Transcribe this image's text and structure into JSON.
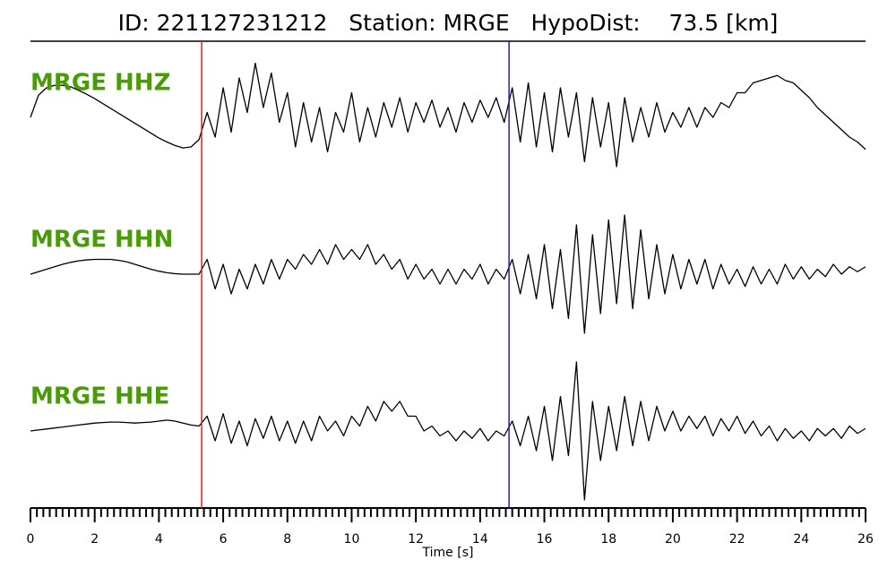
{
  "chart_data": {
    "type": "line",
    "title": "ID: 221127231212   Station: MRGE   HypoDist:    73.5 [km]",
    "x_label": "Time [s]",
    "xlim": [
      0,
      26
    ],
    "xticks": [
      0,
      2,
      4,
      6,
      8,
      10,
      12,
      14,
      16,
      18,
      20,
      22,
      24,
      26
    ],
    "xminorticks": [
      0.2,
      0.4,
      0.6,
      0.8,
      1,
      1.2,
      1.4,
      1.6,
      1.8,
      2.2,
      2.4,
      2.6,
      2.8,
      3,
      3.2,
      3.4,
      3.6,
      3.8,
      4.2,
      4.4,
      4.6,
      4.8,
      5,
      5.2,
      5.4,
      5.6,
      5.8,
      6.2,
      6.4,
      6.6,
      6.8,
      7,
      7.2,
      7.4,
      7.6,
      7.8,
      8.2,
      8.4,
      8.6,
      8.8,
      9,
      9.2,
      9.4,
      9.6,
      9.8,
      10.2,
      10.4,
      10.6,
      10.8,
      11,
      11.2,
      11.4,
      11.6,
      11.8,
      12.2,
      12.4,
      12.6,
      12.8,
      13,
      13.2,
      13.4,
      13.6,
      13.8,
      14.2,
      14.4,
      14.6,
      14.8,
      15,
      15.2,
      15.4,
      15.6,
      15.8,
      16.2,
      16.4,
      16.6,
      16.8,
      17,
      17.2,
      17.4,
      17.6,
      17.8,
      18.2,
      18.4,
      18.6,
      18.8,
      19,
      19.2,
      19.4,
      19.6,
      19.8,
      20.2,
      20.4,
      20.6,
      20.8,
      21,
      21.2,
      21.4,
      21.6,
      21.8,
      22.2,
      22.4,
      22.6,
      22.8,
      23,
      23.2,
      23.4,
      23.6,
      23.8,
      24.2,
      24.4,
      24.6,
      24.8,
      25,
      25.2,
      25.4,
      25.6,
      25.8
    ],
    "picks": [
      {
        "value": 5.33,
        "color": "#e02020"
      },
      {
        "value": 14.9,
        "color": "#2020b0"
      }
    ],
    "label_color": "#4a9a0a",
    "x": [
      0,
      0.25,
      0.5,
      0.75,
      1,
      1.25,
      1.5,
      1.75,
      2,
      2.25,
      2.5,
      2.75,
      3,
      3.25,
      3.5,
      3.75,
      4,
      4.25,
      4.5,
      4.75,
      5,
      5.25,
      5.5,
      5.75,
      6,
      6.25,
      6.5,
      6.75,
      7,
      7.25,
      7.5,
      7.75,
      8,
      8.25,
      8.5,
      8.75,
      9,
      9.25,
      9.5,
      9.75,
      10,
      10.25,
      10.5,
      10.75,
      11,
      11.25,
      11.5,
      11.75,
      12,
      12.25,
      12.5,
      12.75,
      13,
      13.25,
      13.5,
      13.75,
      14,
      14.25,
      14.5,
      14.75,
      15,
      15.25,
      15.5,
      15.75,
      16,
      16.25,
      16.5,
      16.75,
      17,
      17.25,
      17.5,
      17.75,
      18,
      18.25,
      18.5,
      18.75,
      19,
      19.25,
      19.5,
      19.75,
      20,
      20.25,
      20.5,
      20.75,
      21,
      21.25,
      21.5,
      21.75,
      22,
      22.25,
      22.5,
      22.75,
      23,
      23.25,
      23.5,
      23.75,
      24,
      24.25,
      24.5,
      24.75,
      25,
      25.25,
      25.5,
      25.75,
      26
    ],
    "series": [
      {
        "name": "MRGE HHZ",
        "color": "#000000",
        "values": [
          0.0,
          0.45,
          0.6,
          0.65,
          0.65,
          0.62,
          0.55,
          0.47,
          0.38,
          0.28,
          0.18,
          0.08,
          -0.02,
          -0.12,
          -0.22,
          -0.32,
          -0.42,
          -0.5,
          -0.57,
          -0.62,
          -0.6,
          -0.45,
          0.1,
          -0.4,
          0.6,
          -0.3,
          0.8,
          0.1,
          1.1,
          0.2,
          0.9,
          -0.1,
          0.5,
          -0.6,
          0.3,
          -0.5,
          0.2,
          -0.7,
          0.1,
          -0.3,
          0.5,
          -0.5,
          0.2,
          -0.4,
          0.3,
          -0.2,
          0.4,
          -0.3,
          0.3,
          -0.1,
          0.35,
          -0.2,
          0.2,
          -0.3,
          0.3,
          -0.1,
          0.35,
          0.0,
          0.4,
          -0.1,
          0.6,
          -0.5,
          0.7,
          -0.6,
          0.5,
          -0.7,
          0.6,
          -0.4,
          0.5,
          -0.9,
          0.4,
          -0.6,
          0.3,
          -1.0,
          0.4,
          -0.5,
          0.2,
          -0.4,
          0.3,
          -0.3,
          0.1,
          -0.2,
          0.2,
          -0.2,
          0.2,
          0.0,
          0.3,
          0.2,
          0.5,
          0.5,
          0.7,
          0.75,
          0.8,
          0.85,
          0.75,
          0.7,
          0.55,
          0.4,
          0.2,
          0.05,
          -0.1,
          -0.25,
          -0.4,
          -0.5,
          -0.65
        ]
      },
      {
        "name": "MRGE HHN",
        "color": "#000000",
        "values": [
          0.0,
          0.05,
          0.1,
          0.15,
          0.2,
          0.24,
          0.27,
          0.29,
          0.3,
          0.3,
          0.3,
          0.28,
          0.25,
          0.2,
          0.15,
          0.1,
          0.06,
          0.03,
          0.01,
          0.0,
          0.0,
          0.0,
          0.3,
          -0.3,
          0.2,
          -0.4,
          0.1,
          -0.3,
          0.2,
          -0.2,
          0.3,
          -0.1,
          0.3,
          0.1,
          0.4,
          0.2,
          0.5,
          0.2,
          0.6,
          0.3,
          0.5,
          0.3,
          0.6,
          0.2,
          0.4,
          0.1,
          0.3,
          -0.1,
          0.2,
          -0.1,
          0.1,
          -0.2,
          0.1,
          -0.2,
          0.1,
          -0.1,
          0.2,
          -0.2,
          0.1,
          -0.1,
          0.3,
          -0.4,
          0.4,
          -0.5,
          0.6,
          -0.7,
          0.5,
          -0.9,
          1.0,
          -1.2,
          0.8,
          -0.8,
          1.1,
          -0.6,
          1.2,
          -0.7,
          0.9,
          -0.5,
          0.6,
          -0.4,
          0.4,
          -0.3,
          0.3,
          -0.2,
          0.3,
          -0.3,
          0.2,
          -0.2,
          0.1,
          -0.25,
          0.15,
          -0.2,
          0.1,
          -0.2,
          0.2,
          -0.1,
          0.15,
          -0.1,
          0.1,
          -0.05,
          0.2,
          0.0,
          0.15,
          0.05,
          0.15
        ]
      },
      {
        "name": "MRGE HHE",
        "color": "#000000",
        "values": [
          0.0,
          0.02,
          0.04,
          0.06,
          0.08,
          0.1,
          0.12,
          0.14,
          0.16,
          0.17,
          0.18,
          0.18,
          0.17,
          0.16,
          0.17,
          0.18,
          0.2,
          0.22,
          0.2,
          0.16,
          0.12,
          0.1,
          0.3,
          -0.2,
          0.35,
          -0.25,
          0.2,
          -0.3,
          0.25,
          -0.15,
          0.3,
          -0.2,
          0.2,
          -0.25,
          0.2,
          -0.2,
          0.3,
          0.0,
          0.2,
          -0.1,
          0.3,
          0.1,
          0.5,
          0.2,
          0.6,
          0.4,
          0.6,
          0.3,
          0.3,
          0.0,
          0.1,
          -0.1,
          0.0,
          -0.2,
          0.0,
          -0.15,
          0.05,
          -0.2,
          0.0,
          -0.1,
          0.2,
          -0.3,
          0.3,
          -0.4,
          0.5,
          -0.6,
          0.7,
          -0.5,
          1.4,
          -1.4,
          0.6,
          -0.6,
          0.5,
          -0.4,
          0.7,
          -0.3,
          0.6,
          -0.2,
          0.5,
          0.0,
          0.4,
          0.0,
          0.3,
          0.05,
          0.3,
          -0.1,
          0.25,
          0.0,
          0.3,
          -0.05,
          0.2,
          -0.1,
          0.1,
          -0.2,
          0.05,
          -0.15,
          0.0,
          -0.2,
          0.05,
          -0.1,
          0.05,
          -0.15,
          0.1,
          -0.05,
          0.05
        ]
      }
    ]
  }
}
